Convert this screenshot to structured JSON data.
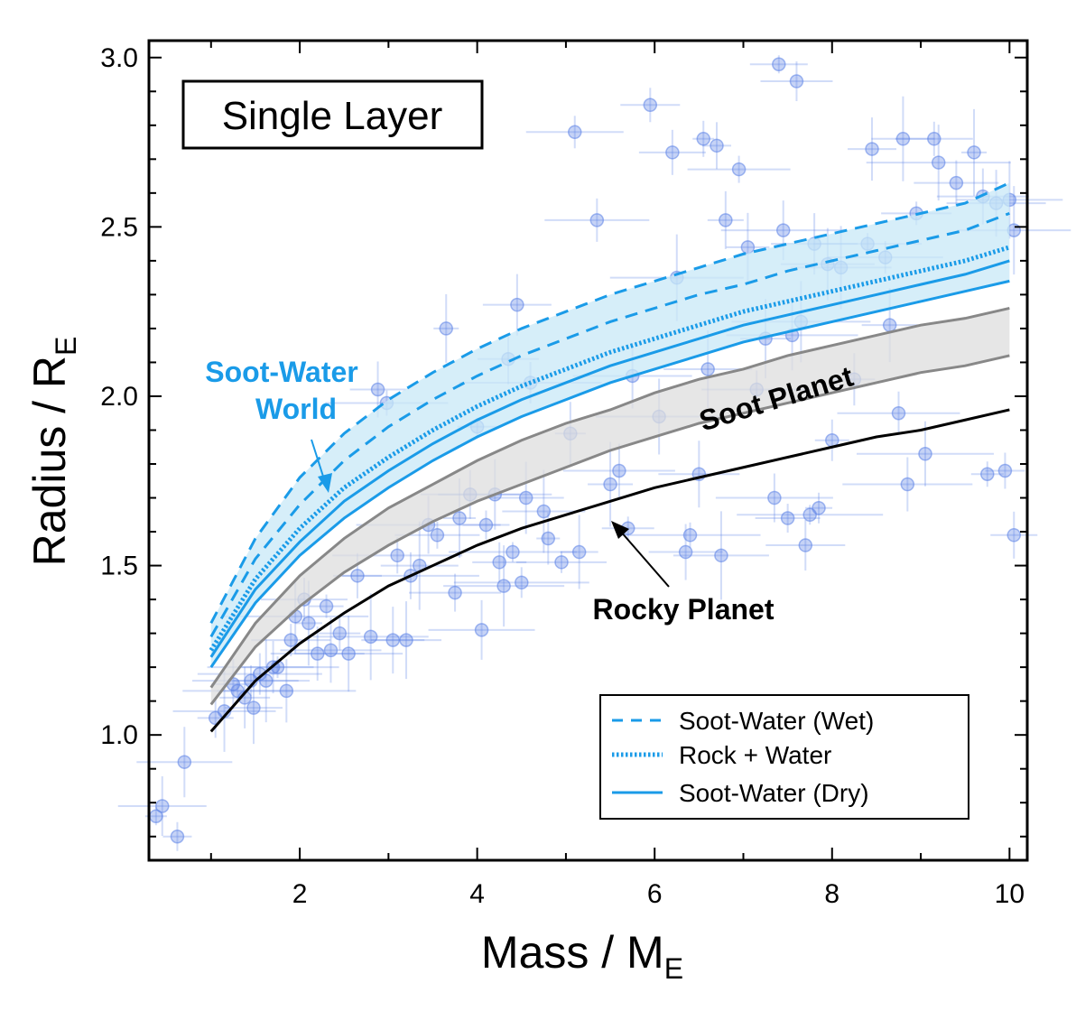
{
  "chart_data": {
    "type": "line",
    "panel_title": "Single Layer",
    "xlabel": {
      "main": "Mass / M",
      "sub": "E"
    },
    "ylabel": {
      "main": "Radius / R",
      "sub": "E"
    },
    "xlim": [
      0.3,
      10.2
    ],
    "ylim": [
      0.63,
      3.05
    ],
    "x_ticks": [
      2,
      4,
      6,
      8,
      10
    ],
    "x_tick_labels": [
      "2",
      "4",
      "6",
      "8",
      "10"
    ],
    "y_ticks": [
      1.0,
      1.5,
      2.0,
      2.5,
      3.0
    ],
    "y_tick_labels": [
      "1.0",
      "1.5",
      "2.0",
      "2.5",
      "3.0"
    ],
    "curve_mass": [
      1,
      1.5,
      2,
      2.5,
      3,
      3.5,
      4,
      4.5,
      5,
      5.5,
      6,
      6.5,
      7,
      7.5,
      8,
      8.5,
      9,
      9.5,
      10
    ],
    "series": [
      {
        "name": "Soot-Water (Wet)",
        "style": "dashed",
        "color": "#1a9be8",
        "values": [
          1.33,
          1.58,
          1.76,
          1.89,
          1.99,
          2.07,
          2.14,
          2.2,
          2.25,
          2.3,
          2.34,
          2.38,
          2.42,
          2.45,
          2.48,
          2.51,
          2.54,
          2.57,
          2.63
        ]
      },
      {
        "name": "Soot-Water (Wet) lower",
        "style": "dashed",
        "color": "#1a9be8",
        "values": [
          1.29,
          1.52,
          1.68,
          1.81,
          1.91,
          1.99,
          2.06,
          2.12,
          2.17,
          2.22,
          2.26,
          2.3,
          2.33,
          2.37,
          2.4,
          2.43,
          2.46,
          2.49,
          2.54
        ]
      },
      {
        "name": "Rock + Water",
        "style": "dotted",
        "color": "#1a9be8",
        "values": [
          1.25,
          1.46,
          1.61,
          1.73,
          1.82,
          1.9,
          1.97,
          2.03,
          2.08,
          2.13,
          2.17,
          2.21,
          2.25,
          2.28,
          2.31,
          2.34,
          2.37,
          2.4,
          2.44
        ]
      },
      {
        "name": "Soot-Water (Dry)",
        "style": "solid",
        "color": "#1a9be8",
        "values": [
          1.23,
          1.43,
          1.57,
          1.69,
          1.78,
          1.86,
          1.93,
          1.99,
          2.04,
          2.09,
          2.13,
          2.17,
          2.21,
          2.24,
          2.27,
          2.3,
          2.33,
          2.36,
          2.4
        ]
      },
      {
        "name": "Soot-Water (Dry) lower",
        "style": "solid",
        "color": "#1a9be8",
        "values": [
          1.2,
          1.39,
          1.53,
          1.64,
          1.73,
          1.81,
          1.88,
          1.94,
          1.99,
          2.04,
          2.08,
          2.12,
          2.16,
          2.19,
          2.22,
          2.25,
          2.28,
          2.31,
          2.34
        ]
      },
      {
        "name": "Soot Planet upper",
        "style": "solid",
        "color": "#888888",
        "values": [
          1.14,
          1.33,
          1.47,
          1.58,
          1.67,
          1.74,
          1.81,
          1.87,
          1.92,
          1.96,
          2.01,
          2.05,
          2.08,
          2.12,
          2.15,
          2.18,
          2.21,
          2.23,
          2.26
        ]
      },
      {
        "name": "Soot Planet lower",
        "style": "solid",
        "color": "#888888",
        "values": [
          1.09,
          1.26,
          1.38,
          1.48,
          1.56,
          1.63,
          1.69,
          1.74,
          1.79,
          1.84,
          1.88,
          1.92,
          1.95,
          1.98,
          2.01,
          2.04,
          2.07,
          2.09,
          2.12
        ]
      },
      {
        "name": "Rocky Planet",
        "style": "solid",
        "color": "#000000",
        "values": [
          1.01,
          1.16,
          1.27,
          1.36,
          1.44,
          1.5,
          1.56,
          1.61,
          1.65,
          1.69,
          1.73,
          1.76,
          1.79,
          1.82,
          1.85,
          1.88,
          1.9,
          1.93,
          1.96
        ]
      }
    ],
    "exoplanets": [
      {
        "m": 0.38,
        "r": 0.76
      },
      {
        "m": 0.45,
        "r": 0.79
      },
      {
        "m": 0.62,
        "r": 0.7
      },
      {
        "m": 0.7,
        "r": 0.92
      },
      {
        "m": 1.05,
        "r": 1.05
      },
      {
        "m": 1.15,
        "r": 1.07
      },
      {
        "m": 1.25,
        "r": 1.15
      },
      {
        "m": 1.3,
        "r": 1.13
      },
      {
        "m": 1.38,
        "r": 1.11
      },
      {
        "m": 1.45,
        "r": 1.16
      },
      {
        "m": 1.48,
        "r": 1.08
      },
      {
        "m": 1.55,
        "r": 1.18
      },
      {
        "m": 1.62,
        "r": 1.16
      },
      {
        "m": 1.7,
        "r": 1.2
      },
      {
        "m": 1.75,
        "r": 1.2
      },
      {
        "m": 1.85,
        "r": 1.13
      },
      {
        "m": 1.9,
        "r": 1.28
      },
      {
        "m": 1.95,
        "r": 1.35
      },
      {
        "m": 2.05,
        "r": 1.4
      },
      {
        "m": 2.1,
        "r": 1.33
      },
      {
        "m": 2.2,
        "r": 1.24
      },
      {
        "m": 2.3,
        "r": 1.38
      },
      {
        "m": 2.35,
        "r": 1.25
      },
      {
        "m": 2.45,
        "r": 1.3
      },
      {
        "m": 2.55,
        "r": 1.24
      },
      {
        "m": 2.65,
        "r": 1.47
      },
      {
        "m": 2.8,
        "r": 1.29
      },
      {
        "m": 2.88,
        "r": 2.02
      },
      {
        "m": 2.98,
        "r": 1.98
      },
      {
        "m": 3.05,
        "r": 1.28
      },
      {
        "m": 3.1,
        "r": 1.53
      },
      {
        "m": 3.2,
        "r": 1.28
      },
      {
        "m": 3.25,
        "r": 1.47
      },
      {
        "m": 3.35,
        "r": 1.5
      },
      {
        "m": 3.45,
        "r": 1.62
      },
      {
        "m": 3.55,
        "r": 1.59
      },
      {
        "m": 3.65,
        "r": 2.2
      },
      {
        "m": 3.75,
        "r": 1.42
      },
      {
        "m": 3.8,
        "r": 1.64
      },
      {
        "m": 3.92,
        "r": 1.71
      },
      {
        "m": 4.0,
        "r": 1.91
      },
      {
        "m": 4.05,
        "r": 1.31
      },
      {
        "m": 4.1,
        "r": 1.62
      },
      {
        "m": 4.2,
        "r": 1.71
      },
      {
        "m": 4.25,
        "r": 1.51
      },
      {
        "m": 4.3,
        "r": 1.44
      },
      {
        "m": 4.35,
        "r": 2.11
      },
      {
        "m": 4.4,
        "r": 1.54
      },
      {
        "m": 4.45,
        "r": 2.27
      },
      {
        "m": 4.5,
        "r": 1.45
      },
      {
        "m": 4.55,
        "r": 1.7
      },
      {
        "m": 4.6,
        "r": 2.04
      },
      {
        "m": 4.75,
        "r": 1.66
      },
      {
        "m": 4.8,
        "r": 1.58
      },
      {
        "m": 4.95,
        "r": 1.51
      },
      {
        "m": 5.05,
        "r": 1.89
      },
      {
        "m": 5.1,
        "r": 2.78
      },
      {
        "m": 5.15,
        "r": 1.54
      },
      {
        "m": 5.35,
        "r": 2.52
      },
      {
        "m": 5.5,
        "r": 1.74
      },
      {
        "m": 5.6,
        "r": 1.78
      },
      {
        "m": 5.7,
        "r": 1.61
      },
      {
        "m": 5.75,
        "r": 2.06
      },
      {
        "m": 5.95,
        "r": 2.86
      },
      {
        "m": 6.05,
        "r": 1.94
      },
      {
        "m": 6.2,
        "r": 2.72
      },
      {
        "m": 6.25,
        "r": 2.35
      },
      {
        "m": 6.35,
        "r": 1.54
      },
      {
        "m": 6.4,
        "r": 1.59
      },
      {
        "m": 6.5,
        "r": 1.77
      },
      {
        "m": 6.55,
        "r": 2.76
      },
      {
        "m": 6.6,
        "r": 2.08
      },
      {
        "m": 6.7,
        "r": 2.74
      },
      {
        "m": 6.75,
        "r": 1.53
      },
      {
        "m": 6.8,
        "r": 2.52
      },
      {
        "m": 6.95,
        "r": 2.67
      },
      {
        "m": 7.05,
        "r": 2.44
      },
      {
        "m": 7.15,
        "r": 2.02
      },
      {
        "m": 7.25,
        "r": 2.17
      },
      {
        "m": 7.35,
        "r": 1.7
      },
      {
        "m": 7.4,
        "r": 2.98
      },
      {
        "m": 7.45,
        "r": 2.49
      },
      {
        "m": 7.5,
        "r": 1.64
      },
      {
        "m": 7.55,
        "r": 2.18
      },
      {
        "m": 7.6,
        "r": 2.93
      },
      {
        "m": 7.65,
        "r": 2.22
      },
      {
        "m": 7.7,
        "r": 1.56
      },
      {
        "m": 7.75,
        "r": 1.65
      },
      {
        "m": 7.8,
        "r": 2.45
      },
      {
        "m": 7.85,
        "r": 1.67
      },
      {
        "m": 7.95,
        "r": 2.39
      },
      {
        "m": 8.0,
        "r": 1.87
      },
      {
        "m": 8.1,
        "r": 2.38
      },
      {
        "m": 8.25,
        "r": 2.05
      },
      {
        "m": 8.4,
        "r": 2.45
      },
      {
        "m": 8.45,
        "r": 2.73
      },
      {
        "m": 8.6,
        "r": 2.41
      },
      {
        "m": 8.65,
        "r": 2.21
      },
      {
        "m": 8.75,
        "r": 1.95
      },
      {
        "m": 8.8,
        "r": 2.76
      },
      {
        "m": 8.85,
        "r": 1.74
      },
      {
        "m": 8.95,
        "r": 2.54
      },
      {
        "m": 9.05,
        "r": 1.83
      },
      {
        "m": 9.15,
        "r": 2.76
      },
      {
        "m": 9.2,
        "r": 2.69
      },
      {
        "m": 9.4,
        "r": 2.63
      },
      {
        "m": 9.6,
        "r": 2.72
      },
      {
        "m": 9.7,
        "r": 2.59
      },
      {
        "m": 9.75,
        "r": 1.77
      },
      {
        "m": 9.85,
        "r": 2.57
      },
      {
        "m": 9.95,
        "r": 1.78
      },
      {
        "m": 10.0,
        "r": 2.58
      },
      {
        "m": 10.05,
        "r": 1.59
      },
      {
        "m": 10.05,
        "r": 2.49
      }
    ],
    "legend": [
      {
        "label": "Soot-Water (Wet)",
        "style": "dashed"
      },
      {
        "label": "Rock + Water",
        "style": "dotted"
      },
      {
        "label": "Soot-Water (Dry)",
        "style": "solid"
      }
    ],
    "legend_position": "bottom-right",
    "annotations": {
      "soot_water_world_1": "Soot-Water",
      "soot_water_world_2": "World",
      "soot_planet": "Soot Planet",
      "rocky_planet": "Rocky Planet"
    },
    "colors": {
      "water_blue": "#1a9be8",
      "water_fill": "#c8e8f7",
      "soot_fill": "#dedede",
      "soot_line": "#888888",
      "rocky": "#000000",
      "data_point": "#5b82e6"
    }
  }
}
